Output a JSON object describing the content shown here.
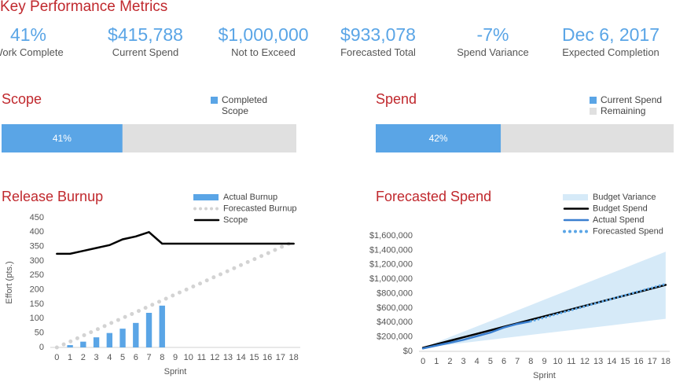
{
  "title": "Key Performance Metrics",
  "kpis": [
    {
      "value": "41%",
      "label": "Work Complete"
    },
    {
      "value": "$415,788",
      "label": "Current Spend"
    },
    {
      "value": "$1,000,000",
      "label": "Not to Exceed"
    },
    {
      "value": "$933,078",
      "label": "Forecasted Total"
    },
    {
      "value": "-7%",
      "label": "Spend Variance"
    },
    {
      "value": "Dec 6, 2017",
      "label": "Expected Completion"
    }
  ],
  "chart_data": [
    {
      "type": "progress",
      "title": "Scope",
      "xlim": [
        0,
        100
      ],
      "series": [
        {
          "name": "Completed Scope",
          "color": "#5aa5e6",
          "values": [
            41
          ],
          "value_labels": [
            "41%"
          ]
        }
      ]
    },
    {
      "type": "progress",
      "title": "Spend",
      "xlim": [
        0,
        100
      ],
      "series": [
        {
          "name": "Current Spend",
          "color": "#5aa5e6",
          "values": [
            42
          ],
          "value_labels": [
            "42%"
          ]
        },
        {
          "name": "Remaining",
          "color": "#e0e0e0",
          "values": [
            58
          ]
        }
      ]
    },
    {
      "type": "combo",
      "title": "Release Burnup",
      "x_label": "Sprint",
      "y_label": "Effort (pts.)",
      "x": [
        0,
        1,
        2,
        3,
        4,
        5,
        6,
        7,
        8,
        9,
        10,
        11,
        12,
        13,
        14,
        15,
        16,
        17,
        18
      ],
      "xlim": [
        -0.5,
        18.5
      ],
      "ylim": [
        0,
        450
      ],
      "yticks": [
        0,
        50,
        100,
        150,
        200,
        250,
        300,
        350,
        400,
        450
      ],
      "series": [
        {
          "name": "Actual Burnup",
          "type": "bar",
          "color": "#5aa5e6",
          "values": [
            0,
            8,
            20,
            35,
            50,
            65,
            85,
            120,
            145,
            null,
            null,
            null,
            null,
            null,
            null,
            null,
            null,
            null,
            null
          ]
        },
        {
          "name": "Forecasted Burnup",
          "type": "line",
          "dash": "dots",
          "color": "#d3d3d3",
          "values": [
            0,
            20,
            41,
            61,
            82,
            102,
            122,
            143,
            163,
            184,
            204,
            224,
            245,
            265,
            286,
            306,
            326,
            347,
            367
          ]
        },
        {
          "name": "Scope",
          "type": "line",
          "color": "#000000",
          "values": [
            325,
            325,
            335,
            345,
            355,
            375,
            385,
            400,
            360,
            360,
            360,
            360,
            360,
            360,
            360,
            360,
            360,
            360,
            360
          ]
        }
      ]
    },
    {
      "type": "combo",
      "title": "Forecasted Spend",
      "x_label": "Sprint",
      "x": [
        0,
        1,
        2,
        3,
        4,
        5,
        6,
        7,
        8,
        9,
        10,
        11,
        12,
        13,
        14,
        15,
        16,
        17,
        18
      ],
      "xlim": [
        -0.3,
        18.3
      ],
      "ylim": [
        0,
        1600000
      ],
      "yticks": [
        {
          "value": 0,
          "label": "$0"
        },
        {
          "value": 200000,
          "label": "$200,000"
        },
        {
          "value": 400000,
          "label": "$400,000"
        },
        {
          "value": 600000,
          "label": "$600,000"
        },
        {
          "value": 800000,
          "label": "$800,000"
        },
        {
          "value": 1000000,
          "label": "$1,000,000"
        },
        {
          "value": 1200000,
          "label": "$1,200,000"
        },
        {
          "value": 1400000,
          "label": "$1,400,000"
        },
        {
          "value": 1600000,
          "label": "$1,600,000"
        }
      ],
      "series": [
        {
          "name": "Budget Variance",
          "type": "band",
          "color": "#d6eaf8",
          "upper": [
            50000,
            124000,
            198000,
            272000,
            346000,
            419000,
            493000,
            567000,
            641000,
            715000,
            789000,
            863000,
            937000,
            1011000,
            1084000,
            1158000,
            1232000,
            1306000,
            1380000
          ],
          "lower": [
            50000,
            72000,
            94000,
            117000,
            139000,
            161000,
            183000,
            206000,
            228000,
            250000,
            272000,
            294000,
            317000,
            339000,
            361000,
            383000,
            406000,
            428000,
            450000
          ]
        },
        {
          "name": "Budget Spend",
          "type": "line",
          "color": "#000000",
          "values": [
            50000,
            98000,
            147000,
            195000,
            243000,
            292000,
            340000,
            388000,
            437000,
            485000,
            533000,
            582000,
            630000,
            678000,
            727000,
            775000,
            823000,
            872000,
            920000
          ]
        },
        {
          "name": "Actual Spend",
          "type": "line",
          "color": "#3a7fd0",
          "values": [
            40000,
            80000,
            120000,
            160000,
            210000,
            260000,
            330000,
            380000,
            415788,
            null,
            null,
            null,
            null,
            null,
            null,
            null,
            null,
            null,
            null
          ]
        },
        {
          "name": "Forecasted Spend",
          "type": "line",
          "dash": "dots",
          "color": "#5aa5e6",
          "values": [
            null,
            null,
            null,
            null,
            null,
            null,
            null,
            null,
            415788,
            467517,
            519246,
            570975,
            622704,
            674433,
            726162,
            777891,
            829620,
            881349,
            933078
          ]
        }
      ]
    }
  ]
}
